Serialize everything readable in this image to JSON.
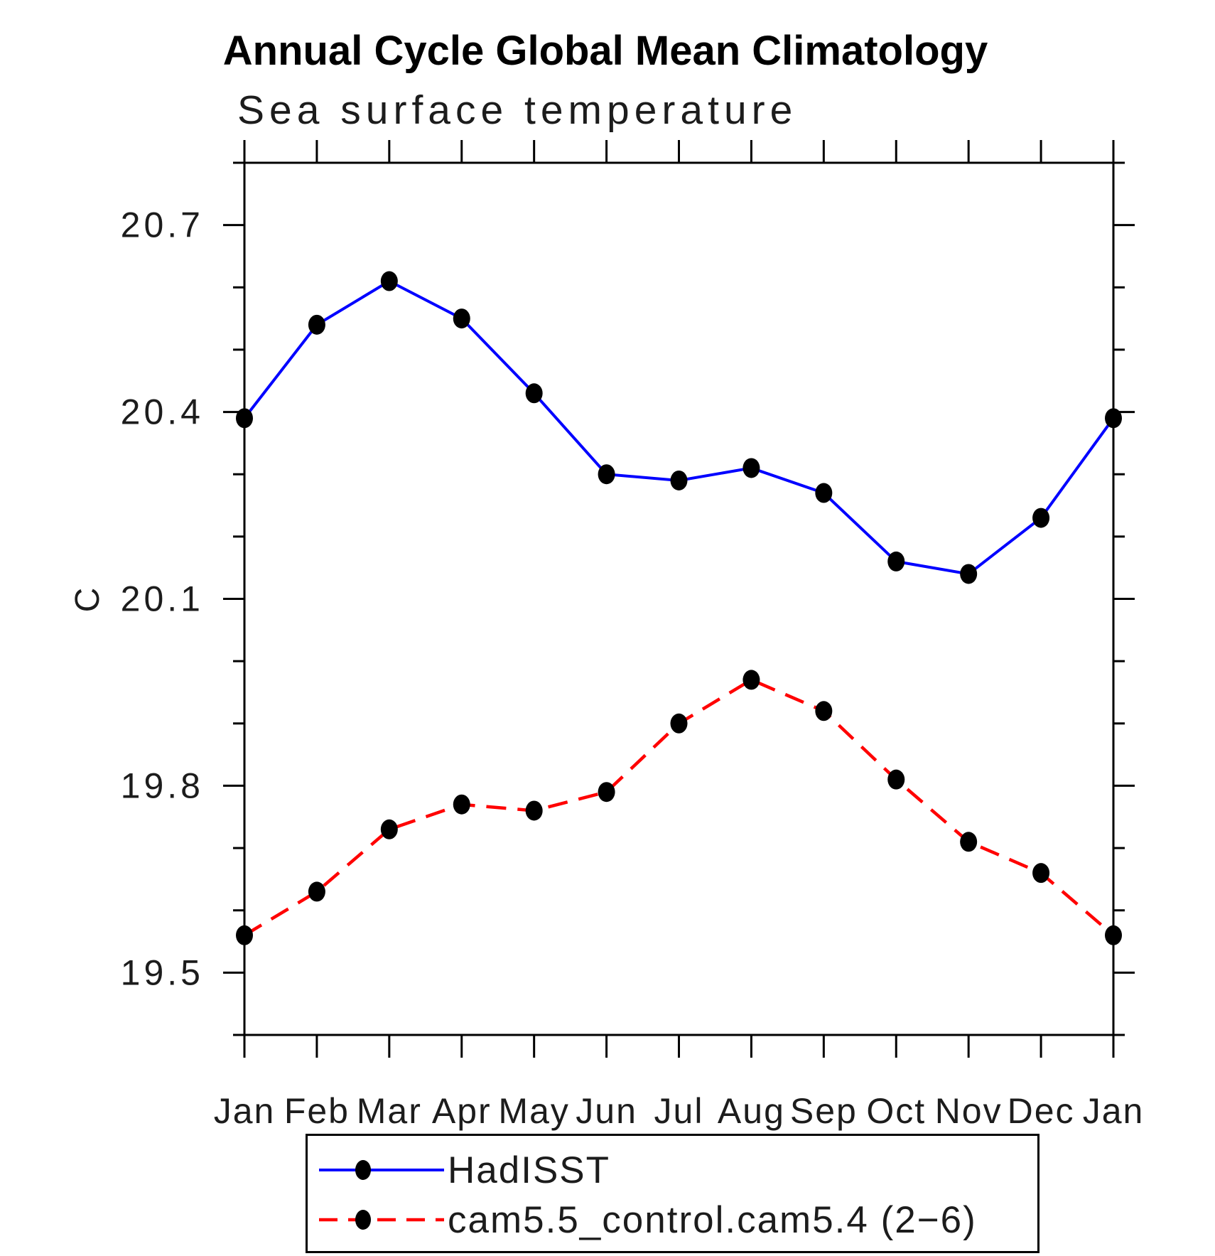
{
  "title": "Annual Cycle Global Mean Climatology",
  "subtitle": "Sea surface temperature",
  "y_axis_label": "C",
  "chart_data": {
    "type": "line",
    "title": "Annual Cycle Global Mean Climatology",
    "subtitle": "Sea surface temperature",
    "ylabel": "C",
    "xlabel": "",
    "categories": [
      "Jan",
      "Feb",
      "Mar",
      "Apr",
      "May",
      "Jun",
      "Jul",
      "Aug",
      "Sep",
      "Oct",
      "Nov",
      "Dec",
      "Jan"
    ],
    "series": [
      {
        "name": "HadISST",
        "color": "#0000ff",
        "line_style": "solid",
        "marker": "filled-ellipse",
        "marker_color": "#000000",
        "values": [
          20.39,
          20.54,
          20.61,
          20.55,
          20.43,
          20.3,
          20.29,
          20.31,
          20.27,
          20.16,
          20.14,
          20.23,
          20.39
        ]
      },
      {
        "name": "cam5.5_control.cam5.4 (2−6)",
        "color": "#ff0000",
        "line_style": "dashed",
        "marker": "filled-ellipse",
        "marker_color": "#000000",
        "values": [
          19.56,
          19.63,
          19.73,
          19.77,
          19.76,
          19.79,
          19.9,
          19.97,
          19.92,
          19.81,
          19.71,
          19.66,
          19.56
        ]
      }
    ],
    "ylim": [
      19.4,
      20.8
    ],
    "ytick_values": [
      19.5,
      19.8,
      20.1,
      20.4,
      20.7
    ],
    "ytick_labels": [
      "19.5",
      "19.8",
      "20.1",
      "20.4",
      "20.7"
    ],
    "minor_tick_step": 0.1,
    "grid": false,
    "frame": true,
    "tick_direction": "out",
    "legend_position": "bottom",
    "axis_color": "#000000"
  }
}
